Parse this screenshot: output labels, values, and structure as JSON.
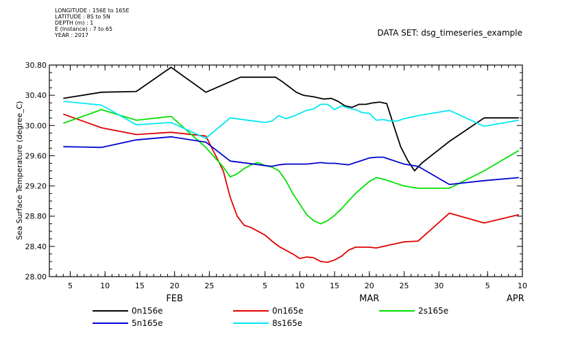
{
  "header": {
    "lines": [
      "LONGITUDE : 156E to 165E",
      "LATITUDE : 8S to 5N",
      "DEPTH (m) : 1",
      "E (Instance) : 7 to 65",
      "YEAR : 2017"
    ],
    "dataset": "DATA SET: dsg_timeseries_example"
  },
  "chart_data": {
    "type": "line",
    "title": "",
    "xlabel": "",
    "ylabel": "Sea Surface Temperature (degree_C)",
    "x_unit": "day of 2017 (Feb 1 = 32)",
    "xlim": [
      33,
      101
    ],
    "ylim": [
      28.0,
      30.8
    ],
    "y_ticks": [
      28.0,
      28.4,
      28.8,
      29.2,
      29.6,
      30.0,
      30.4,
      30.8
    ],
    "y_tick_labels": [
      "28.00",
      "28.40",
      "28.80",
      "29.20",
      "29.60",
      "30.00",
      "30.40",
      "30.80"
    ],
    "x_ticks": [
      36,
      41,
      46,
      51,
      56,
      64,
      69,
      74,
      79,
      84,
      89,
      96,
      101
    ],
    "x_tick_labels": [
      "5",
      "10",
      "15",
      "20",
      "25",
      "5",
      "10",
      "15",
      "20",
      "25",
      "30",
      "5",
      "10"
    ],
    "months": [
      {
        "label": "FEB",
        "x": 51
      },
      {
        "label": "MAR",
        "x": 79
      },
      {
        "label": "APR",
        "x": 100
      }
    ],
    "grid": false,
    "legend_position": "bottom",
    "series": [
      {
        "name": "0n156e",
        "color": "#000000",
        "x": [
          35,
          40.5,
          45.5,
          50.5,
          55.5,
          60.5,
          65.5,
          66.5,
          67.5,
          68.5,
          69.5,
          71,
          71.5,
          72.5,
          73.5,
          74.5,
          75.5,
          76.5,
          77.5,
          78.5,
          79.5,
          80.5,
          81.5,
          82.5,
          83.5,
          84.5,
          85.5,
          86.5,
          90.5,
          95.5,
          100.5
        ],
        "y": [
          30.36,
          30.44,
          30.45,
          30.77,
          30.44,
          30.64,
          30.64,
          30.58,
          30.51,
          30.44,
          30.4,
          30.38,
          30.37,
          30.35,
          30.36,
          30.32,
          30.26,
          30.24,
          30.28,
          30.28,
          30.3,
          30.31,
          30.29,
          30.0,
          29.72,
          29.54,
          29.4,
          29.5,
          29.79,
          30.1,
          30.1
        ]
      },
      {
        "name": "0n165e",
        "color": "#e00000",
        "x": [
          35,
          40.5,
          45.5,
          50.5,
          55.5,
          58,
          59,
          60,
          61,
          62,
          63,
          64,
          65,
          66,
          67,
          68,
          69,
          70,
          71,
          72,
          73,
          74,
          75,
          76,
          77,
          78,
          79,
          80,
          81,
          82,
          83,
          84,
          86,
          90.5,
          95.5,
          100.5
        ],
        "y": [
          30.15,
          29.97,
          29.88,
          29.91,
          29.86,
          29.4,
          29.05,
          28.8,
          28.68,
          28.65,
          28.6,
          28.55,
          28.47,
          28.4,
          28.35,
          28.3,
          28.24,
          28.26,
          28.25,
          28.2,
          28.19,
          28.22,
          28.27,
          28.35,
          28.39,
          28.39,
          28.39,
          28.38,
          28.4,
          28.42,
          28.44,
          28.46,
          28.47,
          28.84,
          28.71,
          28.82
        ]
      },
      {
        "name": "2s165e",
        "color": "#00e000",
        "x": [
          35,
          40.5,
          45.5,
          50.5,
          55.5,
          58,
          59,
          60,
          61,
          62,
          63,
          64,
          65,
          66,
          67,
          68,
          69,
          70,
          71,
          72,
          73,
          74,
          75,
          76,
          77,
          78,
          79,
          80,
          81,
          82,
          83,
          84,
          86,
          90.5,
          95.5,
          100.5
        ],
        "y": [
          30.03,
          30.21,
          30.07,
          30.12,
          29.71,
          29.45,
          29.32,
          29.36,
          29.43,
          29.48,
          29.51,
          29.47,
          29.45,
          29.4,
          29.27,
          29.1,
          28.96,
          28.82,
          28.74,
          28.7,
          28.74,
          28.81,
          28.9,
          29.0,
          29.1,
          29.18,
          29.26,
          29.31,
          29.29,
          29.26,
          29.23,
          29.2,
          29.17,
          29.17,
          29.4,
          29.67
        ]
      },
      {
        "name": "5n165e",
        "color": "#0000d0",
        "x": [
          35,
          40.5,
          45.5,
          50.5,
          55.5,
          59,
          64,
          65,
          66,
          67,
          68,
          69,
          70,
          71,
          72,
          73,
          74,
          75,
          76,
          77,
          78,
          79,
          80,
          81,
          82,
          83,
          84,
          86,
          90.5,
          95.5,
          100.5
        ],
        "y": [
          29.72,
          29.71,
          29.81,
          29.85,
          29.78,
          29.53,
          29.47,
          29.46,
          29.48,
          29.49,
          29.49,
          29.49,
          29.49,
          29.5,
          29.51,
          29.5,
          29.5,
          29.49,
          29.48,
          29.51,
          29.54,
          29.57,
          29.58,
          29.58,
          29.55,
          29.52,
          29.49,
          29.46,
          29.22,
          29.27,
          29.31
        ]
      },
      {
        "name": "8s165e",
        "color": "#00e8f0",
        "x": [
          35,
          40.5,
          45.5,
          50.5,
          55.5,
          59,
          64,
          65,
          66,
          67,
          68,
          69,
          70,
          71,
          72,
          73,
          74,
          75,
          76,
          77,
          78,
          79,
          80,
          81,
          82,
          83,
          84,
          86,
          90.5,
          95.5,
          100.5
        ],
        "y": [
          30.32,
          30.27,
          30.01,
          30.04,
          29.83,
          30.1,
          30.04,
          30.06,
          30.13,
          30.09,
          30.12,
          30.16,
          30.2,
          30.22,
          30.28,
          30.28,
          30.21,
          30.26,
          30.23,
          30.21,
          30.17,
          30.16,
          30.07,
          30.08,
          30.06,
          30.06,
          30.09,
          30.13,
          30.2,
          29.99,
          30.07
        ]
      }
    ]
  }
}
